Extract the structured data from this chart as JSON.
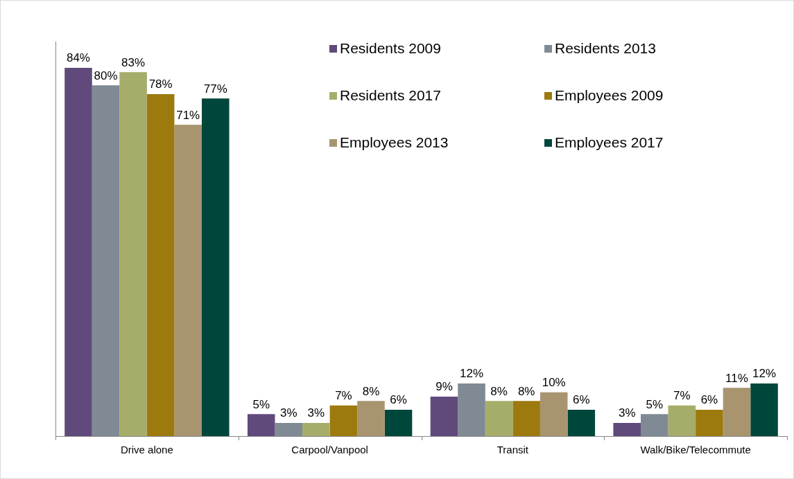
{
  "chart_data": {
    "type": "bar",
    "categories": [
      "Drive alone",
      "Carpool/Vanpool",
      "Transit",
      "Walk/Bike/Telecommute"
    ],
    "series": [
      {
        "name": "Residents 2009",
        "color": "#604a7b",
        "values": [
          84,
          5,
          9,
          3
        ],
        "value_labels": [
          "84%",
          "5%",
          "9%",
          "3%"
        ]
      },
      {
        "name": "Residents 2013",
        "color": "#808a94",
        "values": [
          80,
          3,
          12,
          5
        ],
        "value_labels": [
          "80%",
          "3%",
          "12%",
          "5%"
        ]
      },
      {
        "name": "Residents 2017",
        "color": "#a6ad6a",
        "values": [
          83,
          3,
          8,
          7
        ],
        "value_labels": [
          "83%",
          "3%",
          "8%",
          "7%"
        ]
      },
      {
        "name": "Employees 2009",
        "color": "#9c7a0e",
        "values": [
          78,
          7,
          8,
          6
        ],
        "value_labels": [
          "78%",
          "7%",
          "8%",
          "6%"
        ]
      },
      {
        "name": "Employees 2013",
        "color": "#a89570",
        "values": [
          71,
          8,
          10,
          11
        ],
        "value_labels": [
          "71%",
          "8%",
          "10%",
          "11%"
        ]
      },
      {
        "name": "Employees 2017",
        "color": "#00473b",
        "values": [
          77,
          6,
          6,
          12
        ],
        "value_labels": [
          "77%",
          "6%",
          "6%",
          "12%"
        ]
      }
    ],
    "legend": "top right",
    "grid": false
  }
}
